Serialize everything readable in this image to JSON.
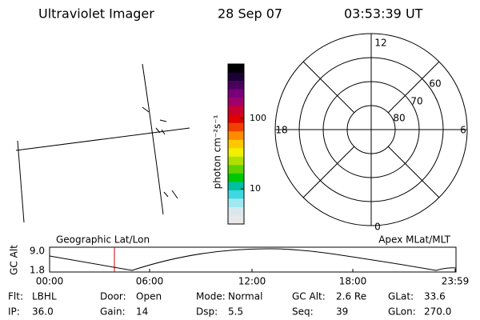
{
  "header": {
    "instrument": "Ultraviolet Imager",
    "date": "28 Sep 07",
    "time": "03:53:39 UT"
  },
  "colorbar": {
    "label": "photon cm⁻²s⁻¹",
    "ticks": [
      "100",
      "10"
    ]
  },
  "polar": {
    "mlt_labels": [
      "12",
      "18",
      "6",
      "0"
    ],
    "lat_labels": [
      "60",
      "70",
      "80"
    ]
  },
  "altitude_panel": {
    "y_label": "GC Alt",
    "y_ticks": [
      "9.0",
      "1.8"
    ],
    "left_title": "Geographic Lat/Lon",
    "right_title": "Apex MLat/MLT",
    "x_ticks": [
      "00:00",
      "06:00",
      "12:00",
      "18:00",
      "23:59"
    ]
  },
  "info": [
    [
      {
        "label": "Flt:",
        "value": "LBHL"
      },
      {
        "label": "Door:",
        "value": "Open"
      },
      {
        "label": "Mode:",
        "value": "Normal"
      },
      {
        "label": "GC Alt:",
        "value": "2.6 Re"
      },
      {
        "label": "GLat:",
        "value": "33.6"
      }
    ],
    [
      {
        "label": "IP:",
        "value": "36.0"
      },
      {
        "label": "Gain:",
        "value": "14"
      },
      {
        "label": "Dsp:",
        "value": "5.5"
      },
      {
        "label": "Seq:",
        "value": "39"
      },
      {
        "label": "GLon:",
        "value": "270.0"
      }
    ]
  ]
}
